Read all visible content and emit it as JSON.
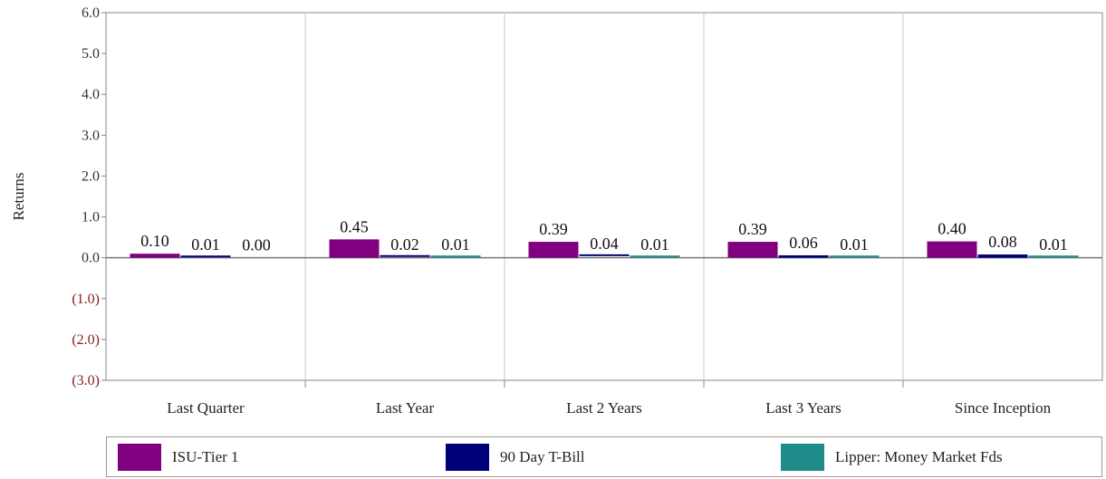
{
  "chart_data": {
    "type": "bar",
    "ylabel": "Returns",
    "ylim": [
      -3.0,
      6.0
    ],
    "yticks": [
      {
        "value": 6.0,
        "label": "6.0"
      },
      {
        "value": 5.0,
        "label": "5.0"
      },
      {
        "value": 4.0,
        "label": "4.0"
      },
      {
        "value": 3.0,
        "label": "3.0"
      },
      {
        "value": 2.0,
        "label": "2.0"
      },
      {
        "value": 1.0,
        "label": "1.0"
      },
      {
        "value": 0.0,
        "label": "0.0"
      },
      {
        "value": -1.0,
        "label": "(1.0)"
      },
      {
        "value": -2.0,
        "label": "(2.0)"
      },
      {
        "value": -3.0,
        "label": "(3.0)"
      }
    ],
    "categories": [
      "Last Quarter",
      "Last Year",
      "Last 2 Years",
      "Last 3 Years",
      "Since Inception"
    ],
    "series": [
      {
        "name": "ISU-Tier 1",
        "color": "#800080",
        "values": [
          0.1,
          0.45,
          0.39,
          0.39,
          0.4
        ],
        "labels": [
          "0.10",
          "0.45",
          "0.39",
          "0.39",
          "0.40"
        ]
      },
      {
        "name": "90 Day T-Bill",
        "color": "#00007a",
        "values": [
          0.01,
          0.02,
          0.04,
          0.06,
          0.08
        ],
        "labels": [
          "0.01",
          "0.02",
          "0.04",
          "0.06",
          "0.08"
        ]
      },
      {
        "name": "Lipper: Money Market Fds",
        "color": "#1f8a8a",
        "values": [
          0.0,
          0.01,
          0.01,
          0.01,
          0.01
        ],
        "labels": [
          "0.00",
          "0.01",
          "0.01",
          "0.01",
          "0.01"
        ]
      }
    ],
    "grid": "vertical category separators",
    "legend_position": "bottom"
  }
}
